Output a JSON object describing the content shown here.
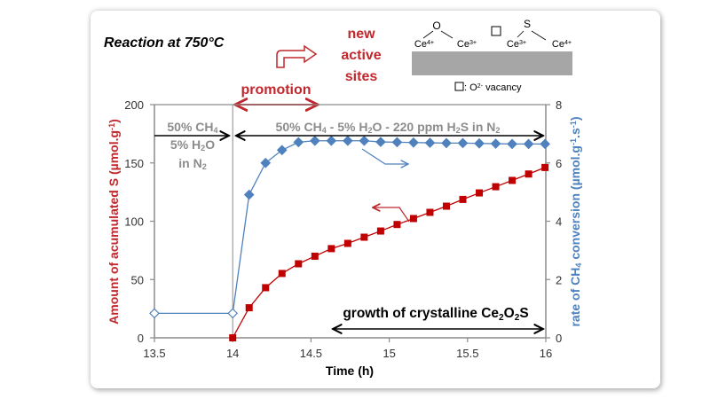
{
  "chart_data": {
    "type": "line",
    "title": "Reaction at 750°C",
    "xlabel": "Time (h)",
    "ylabel": [
      {
        "t": "Amount of acumulated S (µmol.g"
      },
      {
        "t": "-1",
        "sup": true
      },
      {
        "t": ")"
      }
    ],
    "y2label": [
      {
        "t": "rate of CH"
      },
      {
        "t": "4",
        "sub": true
      },
      {
        "t": " conversion (µmol.g"
      },
      {
        "t": "-1",
        "sup": true
      },
      {
        "t": ".s"
      },
      {
        "t": "-1",
        "sup": true
      },
      {
        "t": ")"
      }
    ],
    "xlim": [
      13.5,
      16
    ],
    "ylim": [
      0,
      200
    ],
    "y2lim": [
      0,
      8
    ],
    "xticks": [
      "13.5",
      "14",
      "14.5",
      "15",
      "15.5",
      "16"
    ],
    "yticks": [
      "0",
      "50",
      "100",
      "150",
      "200"
    ],
    "y2ticks": [
      "0",
      "2",
      "4",
      "6",
      "8"
    ],
    "grid": false,
    "series": [
      {
        "name": "Amount of accumulated S",
        "axis": "left",
        "color": "#c00000",
        "marker": "square",
        "x": [
          14.0,
          14.105,
          14.21,
          14.315,
          14.42,
          14.525,
          14.63,
          14.735,
          14.84,
          14.945,
          15.05,
          15.155,
          15.26,
          15.365,
          15.47,
          15.575,
          15.68,
          15.785,
          15.89,
          15.995
        ],
        "y": [
          0,
          25.8,
          43,
          55.2,
          63.5,
          70,
          76.5,
          81,
          86.3,
          91.6,
          97.2,
          102.3,
          107.6,
          112.9,
          118.7,
          124.3,
          129.6,
          135,
          140.5,
          146.1
        ]
      },
      {
        "name": "Rate of CH4 conversion",
        "axis": "right",
        "color": "#4f81bd",
        "marker": "diamond",
        "x": [
          13.5,
          14.0,
          14.105,
          14.21,
          14.315,
          14.42,
          14.525,
          14.63,
          14.735,
          14.84,
          14.945,
          15.05,
          15.155,
          15.26,
          15.365,
          15.47,
          15.575,
          15.68,
          15.785,
          15.89,
          15.995
        ],
        "y": [
          0.84,
          0.84,
          4.91,
          6.0,
          6.44,
          6.71,
          6.76,
          6.76,
          6.76,
          6.76,
          6.72,
          6.71,
          6.7,
          6.69,
          6.68,
          6.68,
          6.67,
          6.66,
          6.65,
          6.65,
          6.65
        ],
        "open_markers": [
          0,
          1
        ]
      }
    ],
    "annotations": {
      "pre_feed": [
        [
          {
            "t": "50% CH"
          },
          {
            "t": "4",
            "sub": true
          }
        ],
        [
          {
            "t": "5% H"
          },
          {
            "t": "2",
            "sub": true
          },
          {
            "t": "O"
          }
        ],
        [
          {
            "t": "in N"
          },
          {
            "t": "2",
            "sub": true
          }
        ]
      ],
      "main_feed": [
        {
          "t": "50% CH"
        },
        {
          "t": "4",
          "sub": true
        },
        {
          "t": " - 5% H"
        },
        {
          "t": "2",
          "sub": true
        },
        {
          "t": "O - 220 ppm H"
        },
        {
          "t": "2",
          "sub": true
        },
        {
          "t": "S in N"
        },
        {
          "t": "2",
          "sub": true
        }
      ],
      "promotion": "promotion",
      "new_active_sites": [
        "new",
        "active",
        "sites"
      ],
      "growth": [
        {
          "t": "growth of crystalline Ce"
        },
        {
          "t": "2",
          "sub": true
        },
        {
          "t": "O"
        },
        {
          "t": "2",
          "sub": true
        },
        {
          "t": "S"
        }
      ]
    },
    "inset": {
      "atoms": [
        [
          {
            "t": "Ce"
          },
          {
            "t": "4+",
            "sup": true
          }
        ],
        [
          {
            "t": "Ce"
          },
          {
            "t": "3+",
            "sup": true
          }
        ],
        [
          {
            "t": "Ce"
          },
          {
            "t": "3+",
            "sup": true
          }
        ],
        [
          {
            "t": "Ce"
          },
          {
            "t": "4+",
            "sup": true
          }
        ]
      ],
      "bridge_left": "O",
      "bridge_right": "S",
      "legend": [
        {
          "t": " : O"
        },
        {
          "t": "2-",
          "sup": true
        },
        {
          "t": " vacancy"
        }
      ]
    },
    "colors": {
      "red": "#c0282d",
      "blue": "#4f81bd",
      "axis": "#8c8c8c",
      "feed_text": "#8c8c8c"
    }
  }
}
